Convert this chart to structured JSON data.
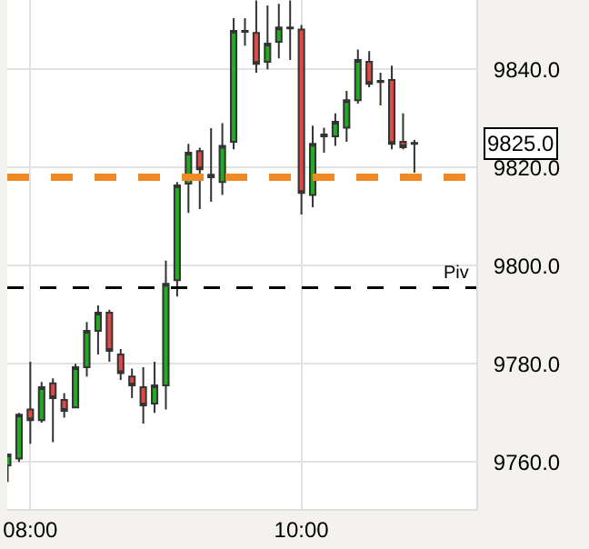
{
  "chart_data": {
    "type": "candlestick",
    "x": [
      7.8333,
      7.9167,
      8,
      8.0833,
      8.1667,
      8.25,
      8.3333,
      8.4167,
      8.5,
      8.5833,
      8.6667,
      8.75,
      8.8333,
      8.9167,
      9,
      9.0833,
      9.1667,
      9.25,
      9.3333,
      9.4167,
      9.5,
      9.5833,
      9.6667,
      9.75,
      9.8333,
      9.9167,
      10,
      10.0833,
      10.1667,
      10.25,
      10.3333,
      10.4167,
      10.5,
      10.5833,
      10.6667,
      10.75,
      10.8333
    ],
    "ohlc": [
      [
        9759.3,
        9761.5,
        9755.9,
        9761.5
      ],
      [
        9760.7,
        9770,
        9760,
        9769.6
      ],
      [
        9770.7,
        9780.4,
        9763.7,
        9768.5
      ],
      [
        9768.5,
        9776.3,
        9768,
        9775.2
      ],
      [
        9776,
        9777,
        9764,
        9773
      ],
      [
        9772.6,
        9774,
        9769,
        9770.4
      ],
      [
        9771.1,
        9780,
        9771,
        9779.3
      ],
      [
        9779.3,
        9788.5,
        9777.4,
        9786.7
      ],
      [
        9786.7,
        9791.9,
        9781.9,
        9790.4
      ],
      [
        9790.4,
        9791,
        9780.4,
        9782.6
      ],
      [
        9781.9,
        9783,
        9776.7,
        9778.1
      ],
      [
        9777.4,
        9779,
        9773,
        9775.6
      ],
      [
        9775.2,
        9779.3,
        9767.8,
        9771.5
      ],
      [
        9771.9,
        9780.4,
        9770,
        9775.6
      ],
      [
        9775.6,
        9801,
        9770.7,
        9796.3
      ],
      [
        9797,
        9817,
        9793.7,
        9816.3
      ],
      [
        9816.7,
        9824.8,
        9810.7,
        9823
      ],
      [
        9823.3,
        9824,
        9811.5,
        9819.6
      ],
      [
        9818,
        9828,
        9813,
        9818.5
      ],
      [
        9817,
        9829,
        9814.4,
        9824.4
      ],
      [
        9825.2,
        9850.4,
        9823.7,
        9847.8
      ],
      [
        9847.6,
        9850.4,
        9844.8,
        9847.8
      ],
      [
        9847.4,
        9854,
        9839.3,
        9841.1
      ],
      [
        9841.5,
        9853,
        9840,
        9845.2
      ],
      [
        9845.6,
        9853.3,
        9842.2,
        9848.5
      ],
      [
        9848.5,
        9854,
        9841.9,
        9848.3
      ],
      [
        9848.1,
        9849,
        9810.4,
        9814.8
      ],
      [
        9814.4,
        9828.5,
        9811.9,
        9824.8
      ],
      [
        9826.3,
        9828.1,
        9823,
        9826.7
      ],
      [
        9826.3,
        9831,
        9824.4,
        9829.3
      ],
      [
        9828.1,
        9835.6,
        9825.2,
        9833.7
      ],
      [
        9833.7,
        9844,
        9833,
        9841.9
      ],
      [
        9841.5,
        9843.7,
        9836.3,
        9837
      ],
      [
        9837.4,
        9839.3,
        9832.6,
        9837.6
      ],
      [
        9837.8,
        9840.7,
        9823.7,
        9824.8
      ],
      [
        9825.2,
        9831,
        9823.7,
        9824.1
      ],
      [
        9824.8,
        9825.6,
        9818.9,
        9825
      ]
    ],
    "xlim": [
      7.83,
      11.29
    ],
    "ylim": [
      9750.4,
      9854.1
    ],
    "xticks": [
      {
        "value": 8,
        "label": "08:00"
      },
      {
        "value": 10,
        "label": "10:00"
      }
    ],
    "yticks": [
      {
        "value": 9760,
        "label": "9760.0"
      },
      {
        "value": 9780,
        "label": "9780.0"
      },
      {
        "value": 9800,
        "label": "9800.0"
      },
      {
        "value": 9820,
        "label": "9820.0"
      },
      {
        "value": 9840,
        "label": "9840.0"
      }
    ],
    "grid": true,
    "ref_lines": [
      {
        "axis": "y",
        "value": 9795.5,
        "label": "Piv",
        "color": "#000000",
        "line_style": "dashed"
      },
      {
        "axis": "y",
        "value": 9818,
        "color": "#f08a24",
        "line_style": "dashed"
      }
    ],
    "annotations": [
      "9825.0"
    ]
  }
}
